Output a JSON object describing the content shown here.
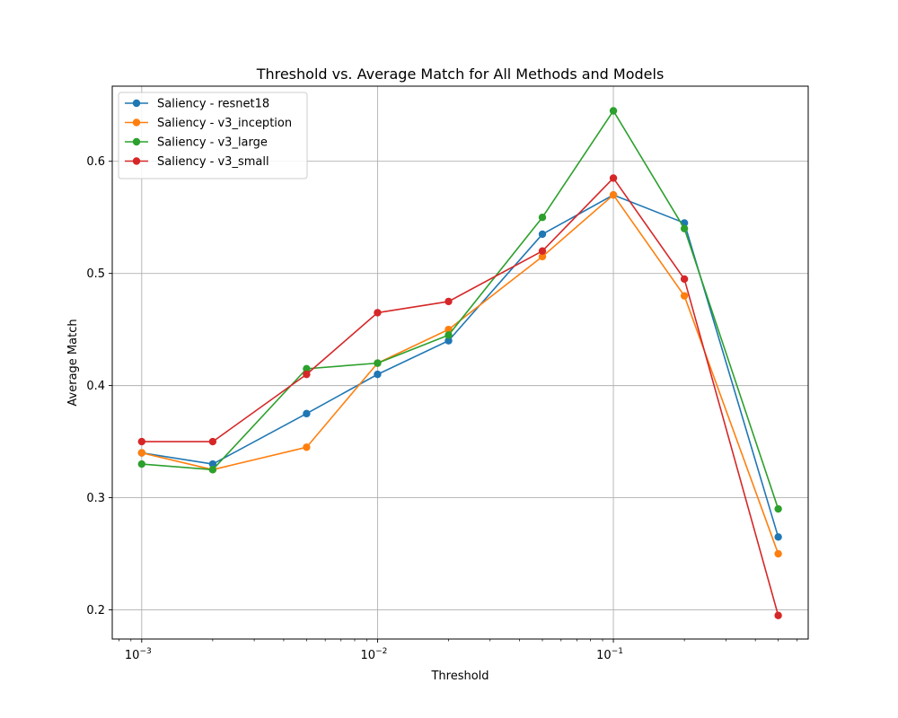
{
  "chart_data": {
    "type": "line",
    "title": "Threshold vs. Average Match for All Methods and Models",
    "xlabel": "Threshold",
    "ylabel": "Average Match",
    "xscale": "log",
    "x": [
      0.001,
      0.002,
      0.005,
      0.01,
      0.02,
      0.05,
      0.1,
      0.2,
      0.5
    ],
    "xlim": [
      0.00075,
      0.67
    ],
    "ylim": [
      0.174,
      0.667
    ],
    "xticks": [
      {
        "value": 0.001,
        "base": "10",
        "exp": "−3"
      },
      {
        "value": 0.01,
        "base": "10",
        "exp": "−2"
      },
      {
        "value": 0.1,
        "base": "10",
        "exp": "−1"
      }
    ],
    "yticks": [
      {
        "value": 0.2,
        "label": "0.2"
      },
      {
        "value": 0.3,
        "label": "0.3"
      },
      {
        "value": 0.4,
        "label": "0.4"
      },
      {
        "value": 0.5,
        "label": "0.5"
      },
      {
        "value": 0.6,
        "label": "0.6"
      }
    ],
    "grid": true,
    "legend_position": "top-left",
    "series": [
      {
        "name": "Saliency - resnet18",
        "color": "#1f77b4",
        "values": [
          0.34,
          0.33,
          0.375,
          0.41,
          0.44,
          0.535,
          0.57,
          0.545,
          0.265
        ]
      },
      {
        "name": "Saliency - v3_inception",
        "color": "#ff7f0e",
        "values": [
          0.34,
          0.325,
          0.345,
          0.42,
          0.45,
          0.515,
          0.57,
          0.48,
          0.25
        ]
      },
      {
        "name": "Saliency - v3_large",
        "color": "#2ca02c",
        "values": [
          0.33,
          0.325,
          0.415,
          0.42,
          0.445,
          0.55,
          0.645,
          0.54,
          0.29
        ]
      },
      {
        "name": "Saliency - v3_small",
        "color": "#d62728",
        "values": [
          0.35,
          0.35,
          0.41,
          0.465,
          0.475,
          0.52,
          0.585,
          0.495,
          0.195
        ]
      }
    ]
  }
}
